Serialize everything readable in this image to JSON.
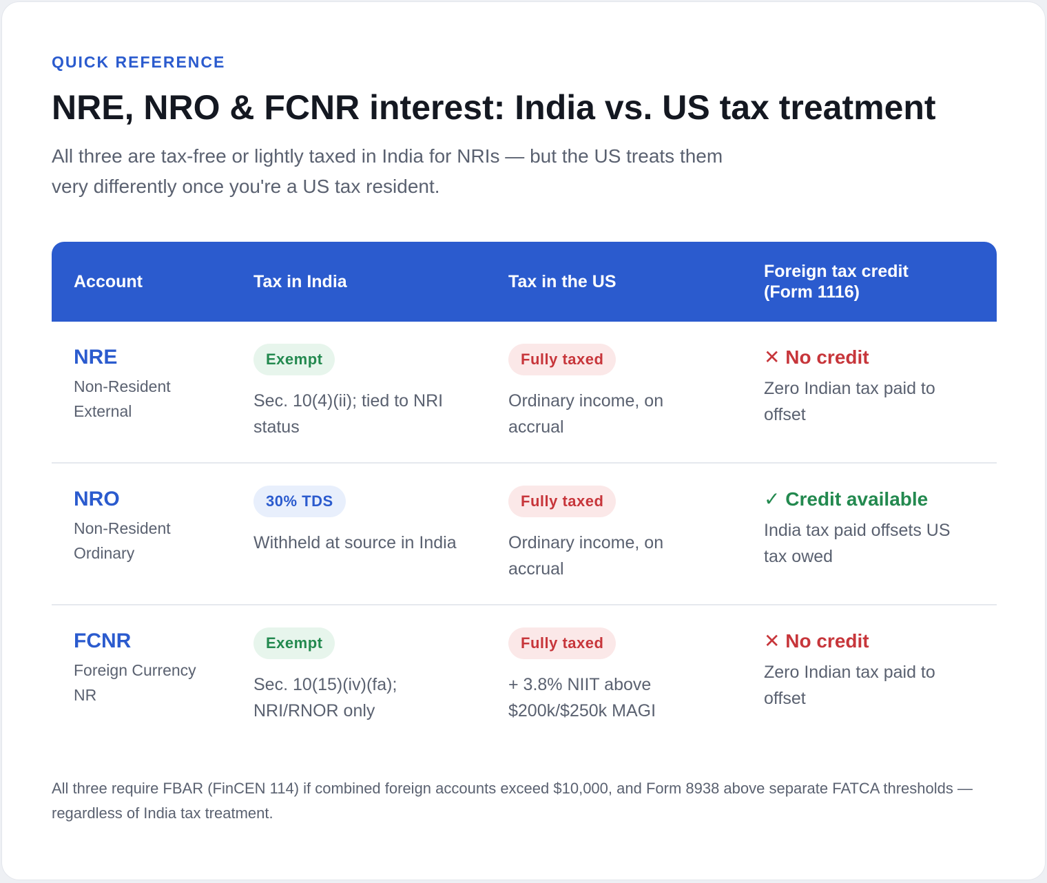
{
  "eyebrow": "QUICK REFERENCE",
  "title": "NRE, NRO & FCNR interest: India vs. US tax treatment",
  "subtitle": "All three are tax-free or lightly taxed in India for NRIs — but the US treats them very differently once you're a US tax resident.",
  "table": {
    "headers": {
      "account": "Account",
      "india": "Tax in India",
      "us": "Tax in the US",
      "credit_line1": "Foreign tax credit",
      "credit_line2": "(Form 1116)"
    },
    "rows": [
      {
        "code": "NRE",
        "name": "Non-Resident External",
        "india_badge": "Exempt",
        "india_note": "Sec. 10(4)(ii); tied to NRI status",
        "us_badge": "Fully taxed",
        "us_note": "Ordinary income, on accrual",
        "credit_icon": "✕",
        "credit_label": "No credit",
        "credit_note": "Zero Indian tax paid to offset"
      },
      {
        "code": "NRO",
        "name": "Non-Resident Ordinary",
        "india_badge": "30% TDS",
        "india_note": "Withheld at source in India",
        "us_badge": "Fully taxed",
        "us_note": "Ordinary income, on accrual",
        "credit_icon": "✓",
        "credit_label": "Credit available",
        "credit_note": "India tax paid offsets US tax owed"
      },
      {
        "code": "FCNR",
        "name": "Foreign Currency NR",
        "india_badge": "Exempt",
        "india_note": "Sec. 10(15)(iv)(fa); NRI/RNOR only",
        "us_badge": "Fully taxed",
        "us_note": "+ 3.8% NIIT above $200k/$250k MAGI",
        "credit_icon": "✕",
        "credit_label": "No credit",
        "credit_note": "Zero Indian tax paid to offset"
      }
    ]
  },
  "footer": "All three require FBAR (FinCEN 114) if combined foreign accounts exceed $10,000, and Form 8938 above separate FATCA thresholds — regardless of India tax treatment.",
  "colors": {
    "accent": "#2b5bce",
    "positive": "#23894f",
    "negative": "#c7363b",
    "text_muted": "#5a6170"
  }
}
